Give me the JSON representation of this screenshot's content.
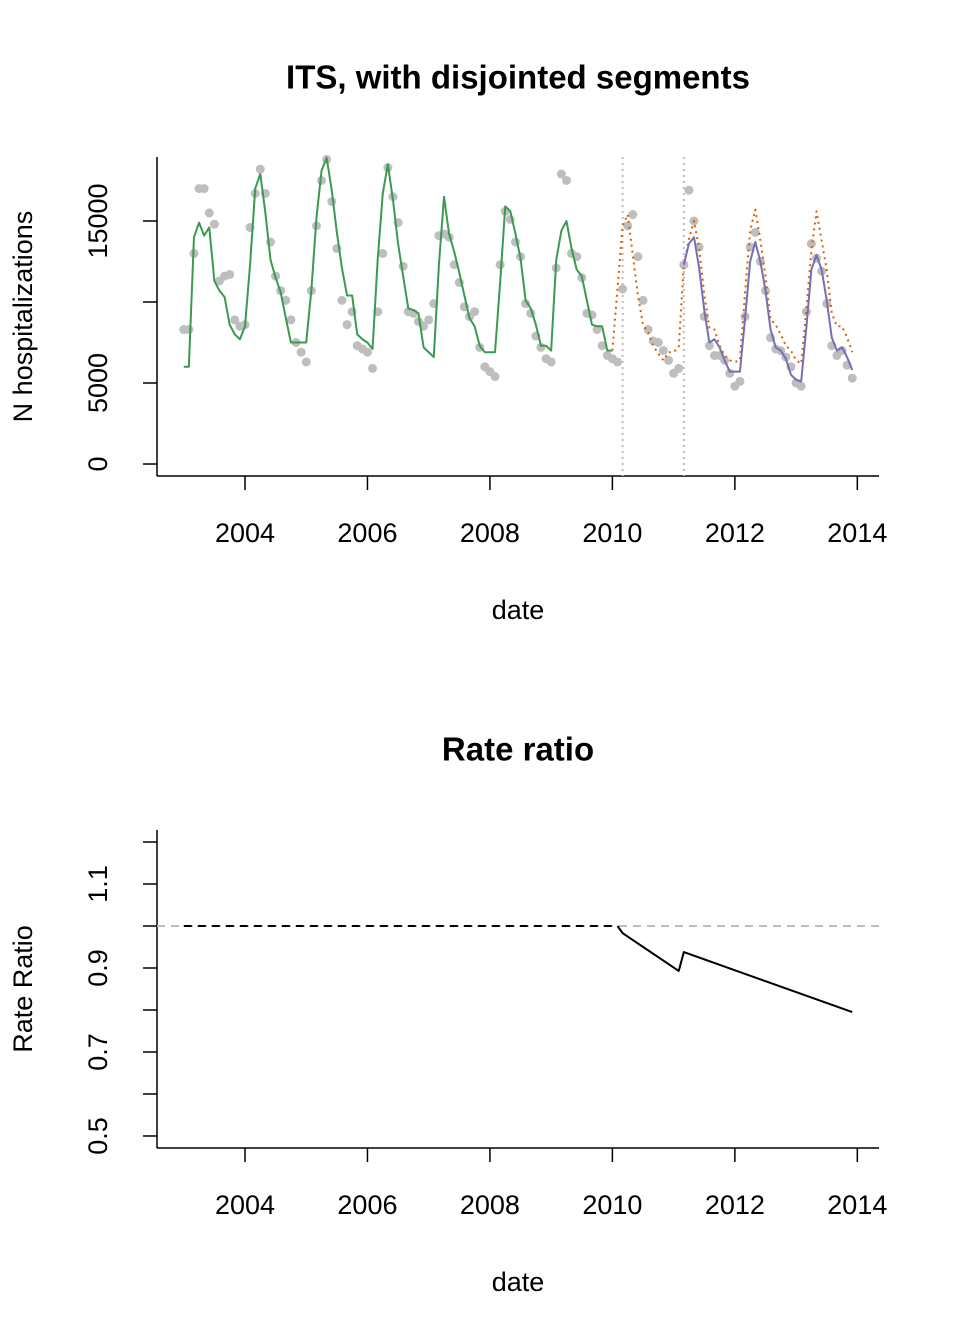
{
  "chart_data": [
    {
      "type": "line",
      "title": "ITS, with disjointed segments",
      "xlabel": "date",
      "ylabel": "N hospitalizations",
      "x": [
        2003.0,
        2003.083,
        2003.167,
        2003.25,
        2003.333,
        2003.417,
        2003.5,
        2003.583,
        2003.667,
        2003.75,
        2003.833,
        2003.917,
        2004.0,
        2004.083,
        2004.167,
        2004.25,
        2004.333,
        2004.417,
        2004.5,
        2004.583,
        2004.667,
        2004.75,
        2004.833,
        2004.917,
        2005.0,
        2005.083,
        2005.167,
        2005.25,
        2005.333,
        2005.417,
        2005.5,
        2005.583,
        2005.667,
        2005.75,
        2005.833,
        2005.917,
        2006.0,
        2006.083,
        2006.167,
        2006.25,
        2006.333,
        2006.417,
        2006.5,
        2006.583,
        2006.667,
        2006.75,
        2006.833,
        2006.917,
        2007.0,
        2007.083,
        2007.167,
        2007.25,
        2007.333,
        2007.417,
        2007.5,
        2007.583,
        2007.667,
        2007.75,
        2007.833,
        2007.917,
        2008.0,
        2008.083,
        2008.167,
        2008.25,
        2008.333,
        2008.417,
        2008.5,
        2008.583,
        2008.667,
        2008.75,
        2008.833,
        2008.917,
        2009.0,
        2009.083,
        2009.167,
        2009.25,
        2009.333,
        2009.417,
        2009.5,
        2009.583,
        2009.667,
        2009.75,
        2009.833,
        2009.917,
        2010.0,
        2010.083,
        2010.167,
        2010.25,
        2010.333,
        2010.417,
        2010.5,
        2010.583,
        2010.667,
        2010.75,
        2010.833,
        2010.917,
        2011.0,
        2011.083,
        2011.167,
        2011.25,
        2011.333,
        2011.417,
        2011.5,
        2011.583,
        2011.667,
        2011.75,
        2011.833,
        2011.917,
        2012.0,
        2012.083,
        2012.167,
        2012.25,
        2012.333,
        2012.417,
        2012.5,
        2012.583,
        2012.667,
        2012.75,
        2012.833,
        2012.917,
        2013.0,
        2013.083,
        2013.167,
        2013.25,
        2013.333,
        2013.417,
        2013.5,
        2013.583,
        2013.667,
        2013.75,
        2013.833,
        2013.917
      ],
      "xlim": [
        2002.563,
        2014.354
      ],
      "xticks": [
        2004,
        2006,
        2008,
        2010,
        2012,
        2014
      ],
      "ylim": [
        -740,
        18950
      ],
      "yticks": [
        0,
        5000,
        {
          "value": 10000,
          "label": null
        },
        15000
      ],
      "vlines": [
        2010.167,
        2011.167
      ],
      "series": [
        {
          "style": "points",
          "color": "#bebebe",
          "values": [
            8300,
            8300,
            13000,
            17000,
            17000,
            15500,
            14800,
            11300,
            11600,
            11700,
            8900,
            8500,
            8600,
            14600,
            16700,
            18200,
            16700,
            13700,
            11600,
            10700,
            10100,
            8900,
            7500,
            6900,
            6300,
            10700,
            14700,
            17500,
            18800,
            16200,
            13300,
            10100,
            8600,
            9400,
            7300,
            7100,
            6900,
            5900,
            9400,
            13000,
            18300,
            16500,
            14900,
            12200,
            9400,
            9300,
            8800,
            8500,
            8900,
            9900,
            14100,
            14200,
            14000,
            12300,
            11200,
            9700,
            9100,
            9400,
            7200,
            6000,
            5700,
            5400,
            12300,
            15600,
            15100,
            13700,
            12800,
            9900,
            9300,
            7900,
            7200,
            6500,
            6300,
            12100,
            17900,
            17500,
            13000,
            12800,
            11500,
            9300,
            9200,
            8300,
            7300,
            6700,
            6500,
            6300,
            10800,
            14700,
            15400,
            12800,
            10100,
            8300,
            7600,
            7500,
            7000,
            6400,
            5600,
            5900,
            12300,
            16900,
            15000,
            13400,
            9100,
            7300,
            6700,
            6700,
            6400,
            5600,
            4800,
            5100,
            9100,
            13400,
            14300,
            12500,
            10700,
            7800,
            7100,
            7000,
            6600,
            6000,
            5000,
            4800,
            9400,
            13600,
            12700,
            11900,
            9900,
            7300,
            6700,
            7000,
            6100,
            5300
          ]
        },
        {
          "style": "dotted",
          "color": "#d95f02",
          "values": [
            null,
            null,
            null,
            null,
            null,
            null,
            null,
            null,
            null,
            null,
            null,
            null,
            null,
            null,
            null,
            null,
            null,
            null,
            null,
            null,
            null,
            null,
            null,
            null,
            null,
            null,
            null,
            null,
            null,
            null,
            null,
            null,
            null,
            null,
            null,
            null,
            null,
            null,
            null,
            null,
            null,
            null,
            null,
            null,
            null,
            null,
            null,
            null,
            null,
            null,
            null,
            null,
            null,
            null,
            null,
            null,
            null,
            null,
            null,
            null,
            null,
            null,
            null,
            null,
            null,
            null,
            null,
            null,
            null,
            null,
            null,
            null,
            null,
            null,
            null,
            null,
            null,
            null,
            null,
            null,
            null,
            null,
            null,
            null,
            7000,
            10800,
            14700,
            15400,
            12900,
            10400,
            8600,
            8100,
            7300,
            6800,
            6400,
            6900,
            6900,
            7200,
            12300,
            13900,
            15000,
            13300,
            10500,
            8400,
            8300,
            7300,
            6700,
            6400,
            6300,
            6400,
            10600,
            14400,
            15700,
            13800,
            11600,
            8900,
            8600,
            8000,
            7300,
            7000,
            6400,
            6200,
            9500,
            13200,
            15600,
            13800,
            12000,
            9300,
            8500,
            8500,
            7800,
            6900
          ]
        },
        {
          "style": "line",
          "color": "#3c9a50",
          "values": [
            6000,
            6000,
            14000,
            14900,
            14100,
            14600,
            11300,
            10700,
            10300,
            8600,
            8000,
            7700,
            8500,
            12300,
            17000,
            17900,
            15500,
            12600,
            11500,
            10600,
            9000,
            7500,
            7500,
            7500,
            7500,
            10700,
            15200,
            18100,
            18900,
            16900,
            14300,
            12100,
            10400,
            10400,
            8000,
            7700,
            7500,
            7100,
            12600,
            16700,
            18500,
            16300,
            13600,
            11600,
            9600,
            9500,
            9300,
            7200,
            6900,
            6600,
            12300,
            16500,
            14200,
            13100,
            11800,
            10400,
            9000,
            8500,
            7300,
            6900,
            6900,
            6900,
            11200,
            15900,
            15600,
            14200,
            12700,
            10100,
            9600,
            8600,
            7300,
            7300,
            7000,
            12600,
            14400,
            15000,
            13300,
            12000,
            11600,
            10100,
            8600,
            8500,
            8500,
            7000,
            7000,
            null,
            null,
            null,
            null,
            null,
            null,
            null,
            null,
            null,
            null,
            null,
            null,
            null,
            null,
            null,
            null,
            null,
            null,
            null,
            null,
            null,
            null,
            null,
            null,
            null,
            null,
            null,
            null,
            null,
            null,
            null,
            null,
            null,
            null,
            null,
            null,
            null,
            null,
            null,
            null,
            null,
            null,
            null,
            null,
            null,
            null,
            null
          ]
        },
        {
          "style": "line",
          "color": "#7570b3",
          "values": [
            null,
            null,
            null,
            null,
            null,
            null,
            null,
            null,
            null,
            null,
            null,
            null,
            null,
            null,
            null,
            null,
            null,
            null,
            null,
            null,
            null,
            null,
            null,
            null,
            null,
            null,
            null,
            null,
            null,
            null,
            null,
            null,
            null,
            null,
            null,
            null,
            null,
            null,
            null,
            null,
            null,
            null,
            null,
            null,
            null,
            null,
            null,
            null,
            null,
            null,
            null,
            null,
            null,
            null,
            null,
            null,
            null,
            null,
            null,
            null,
            null,
            null,
            null,
            null,
            null,
            null,
            null,
            null,
            null,
            null,
            null,
            null,
            null,
            null,
            null,
            null,
            null,
            null,
            null,
            null,
            null,
            null,
            null,
            null,
            null,
            null,
            null,
            null,
            null,
            null,
            null,
            null,
            null,
            null,
            null,
            null,
            null,
            null,
            12300,
            13600,
            14000,
            12100,
            9500,
            7500,
            7700,
            7200,
            6400,
            5700,
            5700,
            5700,
            9000,
            12500,
            13700,
            12500,
            10700,
            8300,
            7200,
            7000,
            6500,
            5500,
            5200,
            5100,
            8400,
            12000,
            12900,
            12000,
            10100,
            7800,
            7000,
            7200,
            6600,
            5800
          ]
        }
      ]
    },
    {
      "type": "line",
      "title": "Rate ratio",
      "xlabel": "date",
      "ylabel": "Rate Ratio",
      "x": [
        2003.0,
        2010.083,
        2010.167,
        2011.083,
        2011.167,
        2013.917
      ],
      "xlim": [
        2002.563,
        2014.354
      ],
      "xticks": [
        2004,
        2006,
        2008,
        2010,
        2012,
        2014
      ],
      "ylim": [
        0.4714,
        1.2286
      ],
      "yticks": [
        0.5,
        {
          "value": 0.6,
          "label": null
        },
        0.7,
        {
          "value": 0.8,
          "label": null
        },
        0.9,
        {
          "value": 1.0,
          "label": null
        },
        1.1,
        {
          "value": 1.2,
          "label": null
        }
      ],
      "hline": 1,
      "series": [
        {
          "style": "dashed",
          "color": "#000000",
          "values": [
            1,
            1,
            null,
            null,
            null,
            null
          ]
        },
        {
          "style": "line",
          "color": "#000000",
          "values": [
            null,
            1,
            0.983,
            0.893,
            0.938,
            0.795
          ]
        }
      ]
    }
  ]
}
